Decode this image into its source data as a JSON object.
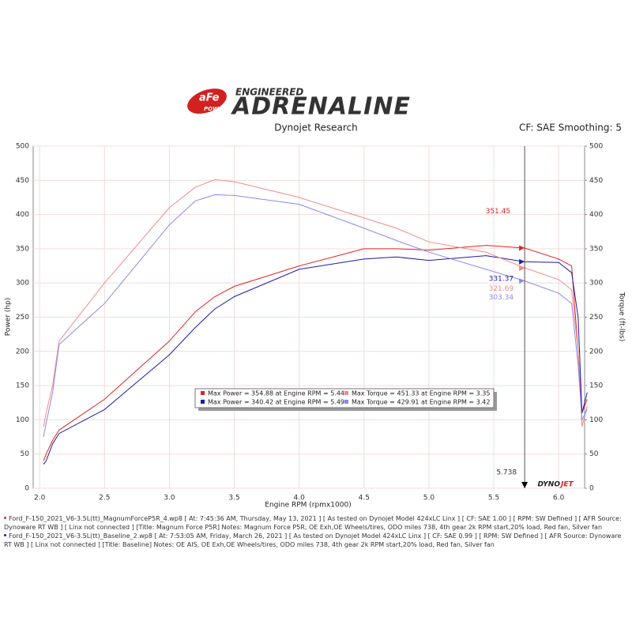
{
  "header": {
    "logo_afe": "aFe",
    "logo_power": "POWER",
    "engineered": "ENGINEERED",
    "adrenaline": "ADRENALINE",
    "left": "Dynojet Research",
    "right": "CF: SAE Smoothing: 5"
  },
  "chart_data": {
    "type": "line",
    "x": [
      2.03,
      2.05,
      2.1,
      2.15,
      2.5,
      3.0,
      3.2,
      3.35,
      3.5,
      4.0,
      4.5,
      4.75,
      5.0,
      5.44,
      5.738,
      6.0,
      6.1,
      6.15,
      6.18,
      6.22
    ],
    "xlim": [
      1.95,
      6.2
    ],
    "xticks": [
      {
        "value": 2,
        "label": "2.0"
      },
      2.5,
      {
        "value": 3,
        "label": "3.0"
      },
      3.5,
      {
        "value": 4,
        "label": "4.0"
      },
      4.5,
      {
        "value": 5,
        "label": "5.0"
      },
      5.5,
      {
        "value": 6,
        "label": "6.0"
      }
    ],
    "x_label": "Engine RPM (rpmx1000)",
    "y_label": "Power (hp)",
    "y2_label": "Torque (ft-lbs)",
    "ylim": [
      0,
      500
    ],
    "yticks": [
      0,
      50,
      100,
      150,
      200,
      250,
      300,
      350,
      400,
      450,
      500
    ],
    "y2lim": [
      0,
      500
    ],
    "y2ticks": [
      0,
      50,
      100,
      150,
      200,
      250,
      300,
      350,
      400,
      450,
      500
    ],
    "grid": true,
    "series": [
      {
        "name": "Max Power = 354.88 at Engine RPM = 5.44",
        "color": "#e02424",
        "values": [
          40,
          50,
          70,
          85,
          130,
          215,
          258,
          280,
          295,
          325,
          350,
          350,
          348,
          355,
          351,
          335,
          325,
          200,
          110,
          130
        ],
        "cursor_value": 351.45
      },
      {
        "name": "Max Power = 340.42 at Engine RPM = 5.49",
        "color": "#1c1ca8",
        "values": [
          35,
          40,
          65,
          80,
          115,
          195,
          235,
          262,
          280,
          320,
          335,
          338,
          333,
          340,
          331,
          330,
          315,
          250,
          110,
          140
        ],
        "cursor_value": 331.37
      },
      {
        "name": "Max Torque = 451.33 at Engine RPM = 3.35",
        "color": "#f08a8a",
        "values": [
          90,
          110,
          150,
          215,
          300,
          410,
          440,
          451,
          448,
          425,
          395,
          380,
          360,
          345,
          322,
          305,
          290,
          200,
          90,
          120
        ],
        "axis": "y2",
        "cursor_value": 321.69
      },
      {
        "name": "Max Torque = 429.91 at Engine RPM = 3.42",
        "color": "#8a8ae6",
        "values": [
          75,
          95,
          140,
          210,
          270,
          385,
          420,
          429,
          428,
          415,
          380,
          362,
          345,
          320,
          303,
          285,
          270,
          180,
          100,
          115
        ],
        "axis": "y2",
        "cursor_value": 303.34
      }
    ],
    "cursor": 5.738,
    "brand": [
      "DYNO",
      "JET"
    ]
  },
  "footer": {
    "runs": [
      {
        "color": "#e02424",
        "text": "Ford_F-150_2021_V6-3.5L(tt)_MagnumForceP5R_4.wp8 [ At: 7:45:36 AM, Thursday, May 13, 2021 ] [ As tested on Dynojet Model 424xLC Linx ] [ CF: SAE 1.00 ] [ RPM: SW Defined ] [ AFR Source: Dynoware RT WB ] [ Linx not connected ] [Title: Magnum Force P5R]  Notes: Magnum Force P5R, OE Exh,OE Wheels/tires, ODO miles 738, 4th gear 2k RPM start,20% load, Red fan, Silver fan"
      },
      {
        "color": "#1c1ca8",
        "text": "Ford_F-150_2021_V6-3.5L(tt)_Baseline_2.wp8 [ At: 7:53:05 AM, Friday, March 26, 2021 ] [ As tested on Dynojet Model 424xLC Linx ] [ CF: SAE 0.99 ] [ RPM: SW Defined ] [ AFR Source: Dynoware RT WB ] [ Linx not connected ] [Title: Baseline]  Notes: OE AIS, OE Exh,OE Wheels/tires, ODO miles 738, 4th gear 2k RPM start,20% load, Red fan, Silver fan"
      }
    ]
  }
}
